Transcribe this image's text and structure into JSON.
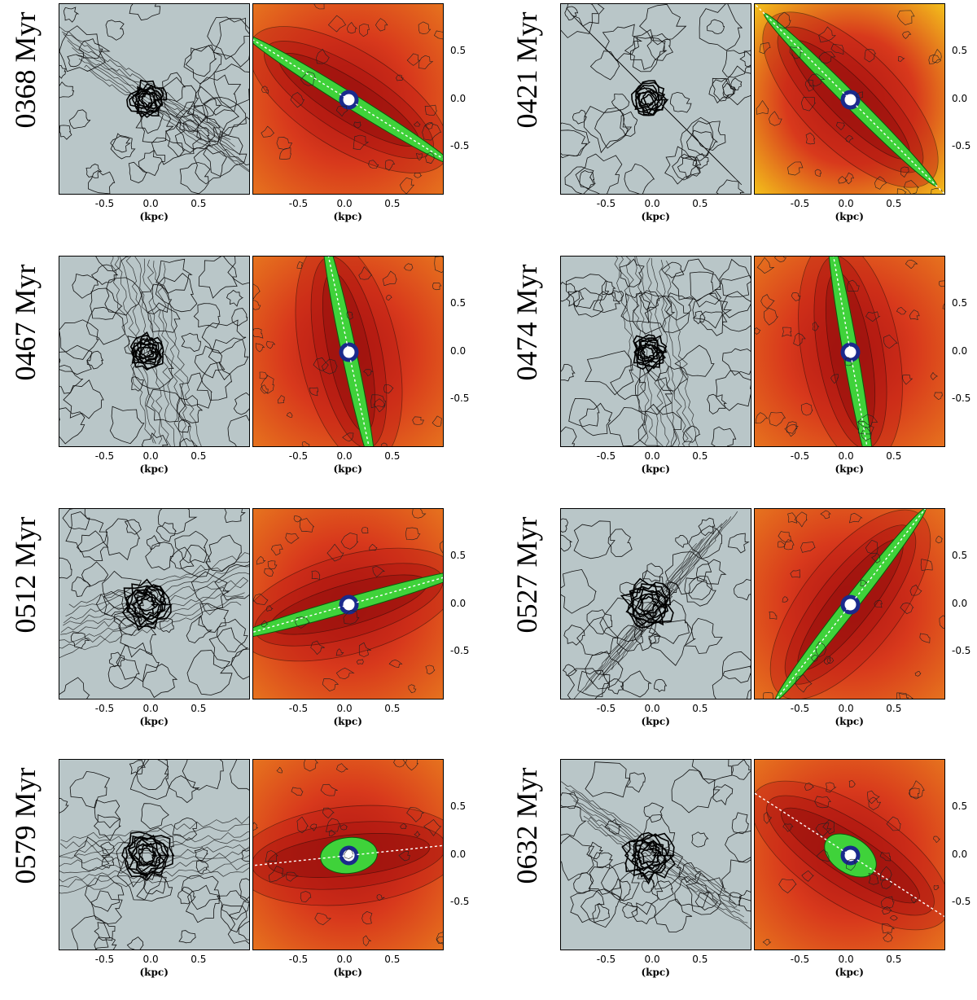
{
  "figure": {
    "panels": [
      {
        "id": "p1",
        "time_label": "0368 Myr",
        "axis_label": "(kpc)",
        "xticks": [
          "-0.5",
          "0.0",
          "0.5"
        ],
        "yticks": [
          "0.5",
          "0.0",
          "-0.5"
        ],
        "orientation_deg": -32,
        "tone": "dark"
      },
      {
        "id": "p2",
        "time_label": "0421 Myr",
        "axis_label": "(kpc)",
        "xticks": [
          "-0.5",
          "0.0",
          "0.5"
        ],
        "yticks": [
          "0.5",
          "0.0",
          "-0.5"
        ],
        "orientation_deg": -45,
        "tone": "bright"
      },
      {
        "id": "p3",
        "time_label": "0467 Myr",
        "axis_label": "(kpc)",
        "xticks": [
          "-0.5",
          "0.0",
          "0.5"
        ],
        "yticks": [
          "0.5",
          "0.0",
          "-0.5"
        ],
        "orientation_deg": -78,
        "tone": "mid"
      },
      {
        "id": "p4",
        "time_label": "0474 Myr",
        "axis_label": "(kpc)",
        "xticks": [
          "-0.5",
          "0.0",
          "0.5"
        ],
        "yticks": [
          "0.5",
          "0.0",
          "-0.5"
        ],
        "orientation_deg": -80,
        "tone": "mid"
      },
      {
        "id": "p5",
        "time_label": "0512 Myr",
        "axis_label": "(kpc)",
        "xticks": [
          "-0.5",
          "0.0",
          "0.5"
        ],
        "yticks": [
          "0.5",
          "0.0",
          "-0.5"
        ],
        "orientation_deg": 16,
        "tone": "mid"
      },
      {
        "id": "p6",
        "time_label": "0527 Myr",
        "axis_label": "(kpc)",
        "xticks": [
          "-0.5",
          "0.0",
          "0.5"
        ],
        "yticks": [
          "0.5",
          "0.0",
          "-0.5"
        ],
        "orientation_deg": 52,
        "tone": "mid"
      },
      {
        "id": "p7",
        "time_label": "0579 Myr",
        "axis_label": "(kpc)",
        "xticks": [
          "-0.5",
          "0.0",
          "0.5"
        ],
        "yticks": [
          "0.5",
          "0.0",
          "-0.5"
        ],
        "orientation_deg": 6,
        "tone": "mid"
      },
      {
        "id": "p8",
        "time_label": "0632 Myr",
        "axis_label": "(kpc)",
        "xticks": [
          "-0.5",
          "0.0",
          "0.5"
        ],
        "yticks": [
          "0.5",
          "0.0",
          "-0.5"
        ],
        "orientation_deg": -33,
        "tone": "mid"
      }
    ],
    "axis_range_kpc": [
      -1,
      1
    ],
    "colors": {
      "gas_bg": "#b9c6c8",
      "density_outer": "#e87a1e",
      "density_mid": "#d8391c",
      "density_inner": "#b01814",
      "bar": "#3fd23a",
      "core_dark": "#1a2a8c",
      "core_light": "#ffffff",
      "guide": "#ffffff"
    }
  }
}
